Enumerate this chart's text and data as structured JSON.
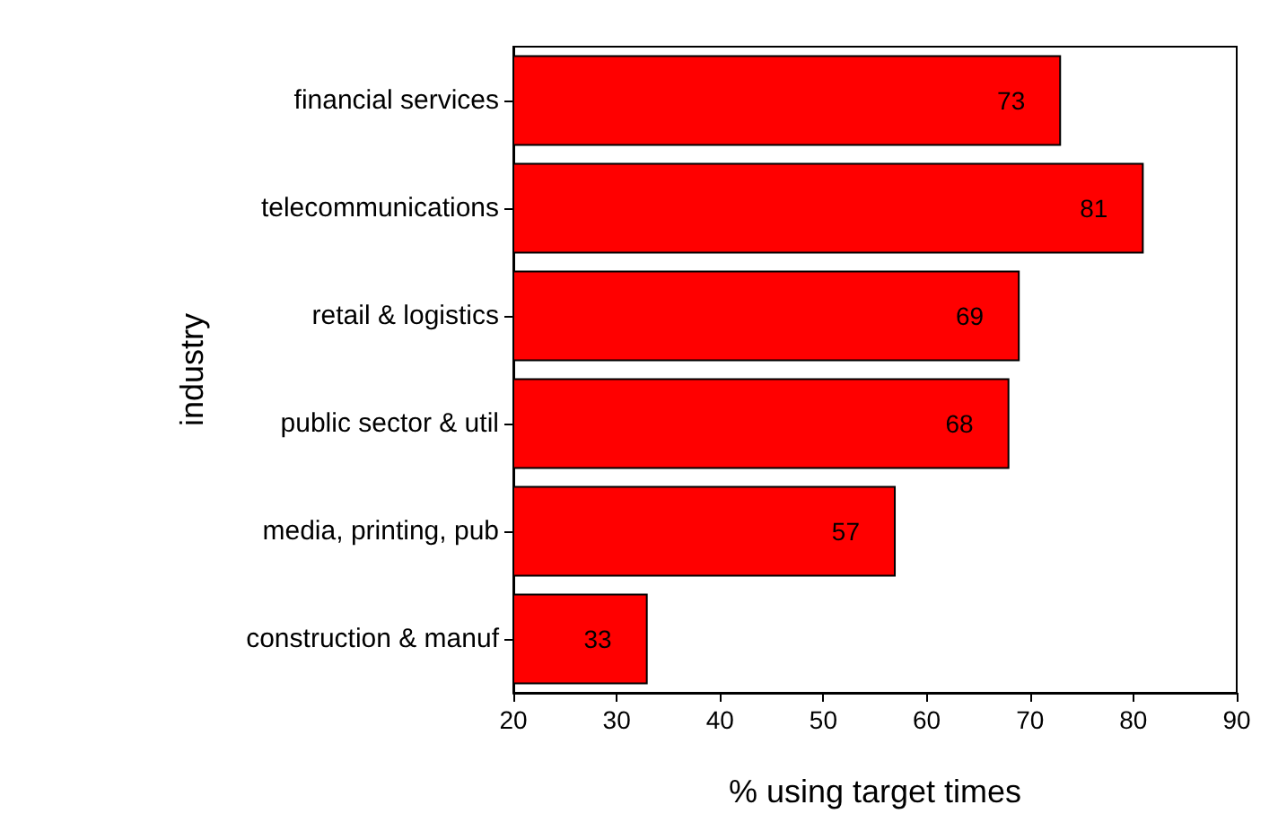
{
  "chart_data": {
    "type": "bar",
    "orientation": "horizontal",
    "xlabel": "% using target times",
    "ylabel": "industry",
    "categories": [
      "financial services",
      "telecommunications",
      "retail & logistics",
      "public sector & util",
      "media, printing, pub",
      "construction & manuf"
    ],
    "values": [
      73,
      81,
      69,
      68,
      57,
      33
    ],
    "color": "#ff0000",
    "xlim": [
      20,
      90
    ],
    "xticks": [
      20,
      30,
      40,
      50,
      60,
      70,
      80,
      90
    ],
    "grid": false,
    "data_labels": true
  }
}
